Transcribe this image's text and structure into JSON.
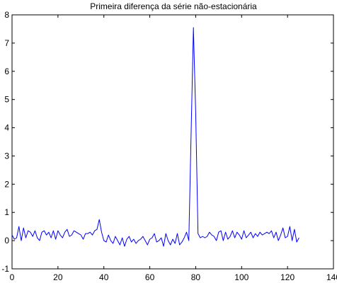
{
  "chart_data": {
    "type": "line",
    "title": "Primeira diferença da série não-estacionária",
    "xlabel": "",
    "ylabel": "",
    "xlim": [
      0,
      140
    ],
    "ylim": [
      -1,
      8
    ],
    "xticks": [
      0,
      20,
      40,
      60,
      80,
      100,
      120,
      140
    ],
    "yticks": [
      -1,
      0,
      1,
      2,
      3,
      4,
      5,
      6,
      7,
      8
    ],
    "grid": false,
    "legend": "none",
    "line_color": "#0000ff",
    "series": [
      {
        "x": [
          0,
          1,
          2,
          3,
          4,
          5,
          6,
          7,
          8,
          9,
          10,
          11,
          12,
          13,
          14,
          15,
          16,
          17,
          18,
          19,
          20,
          21,
          22,
          23,
          24,
          25,
          26,
          27,
          28,
          29,
          30,
          31,
          32,
          33,
          34,
          35,
          36,
          37,
          38,
          39,
          40,
          41,
          42,
          43,
          44,
          45,
          46,
          47,
          48,
          49,
          50,
          51,
          52,
          53,
          54,
          55,
          56,
          57,
          58,
          59,
          60,
          61,
          62,
          63,
          64,
          65,
          66,
          67,
          68,
          69,
          70,
          71,
          72,
          73,
          74,
          75,
          76,
          77,
          78,
          79,
          80,
          81,
          82,
          83,
          84,
          85,
          86,
          87,
          88,
          89,
          90,
          91,
          92,
          93,
          94,
          95,
          96,
          97,
          98,
          99,
          100,
          101,
          102,
          103,
          104,
          105,
          106,
          107,
          108,
          109,
          110,
          111,
          112,
          113,
          114,
          115,
          116,
          117,
          118,
          119,
          120,
          121,
          122,
          123,
          124,
          125
        ],
        "values": [
          0.2,
          0.05,
          0.1,
          0.5,
          0.0,
          0.45,
          0.1,
          0.35,
          0.3,
          0.15,
          0.35,
          0.1,
          0.0,
          0.3,
          0.35,
          0.2,
          0.3,
          0.1,
          0.35,
          0.05,
          0.35,
          0.2,
          0.1,
          0.3,
          0.4,
          0.15,
          0.2,
          0.35,
          0.3,
          0.25,
          0.2,
          0.05,
          0.25,
          0.25,
          0.3,
          0.2,
          0.35,
          0.4,
          0.75,
          0.3,
          0.0,
          -0.05,
          0.2,
          0.0,
          -0.1,
          0.15,
          0.0,
          -0.15,
          0.1,
          -0.2,
          0.05,
          0.15,
          -0.05,
          0.05,
          -0.1,
          0.0,
          0.05,
          0.15,
          0.0,
          -0.15,
          0.05,
          0.1,
          0.25,
          -0.05,
          0.0,
          0.1,
          -0.2,
          0.25,
          0.0,
          -0.15,
          0.05,
          -0.1,
          0.25,
          -0.15,
          -0.05,
          0.1,
          0.3,
          0.0,
          3.8,
          7.55,
          4.5,
          0.25,
          0.1,
          0.15,
          0.1,
          0.15,
          0.3,
          0.2,
          0.15,
          0.0,
          0.3,
          0.35,
          0.0,
          0.3,
          0.05,
          0.15,
          0.35,
          0.1,
          0.3,
          0.2,
          0.05,
          0.35,
          0.1,
          0.2,
          0.3,
          0.1,
          0.25,
          0.15,
          0.3,
          0.2,
          0.25,
          0.3,
          0.25,
          0.35,
          0.1,
          0.3,
          0.0,
          0.2,
          0.45,
          0.1,
          0.15,
          0.5,
          0.0,
          0.4,
          -0.05,
          0.1
        ]
      }
    ]
  }
}
